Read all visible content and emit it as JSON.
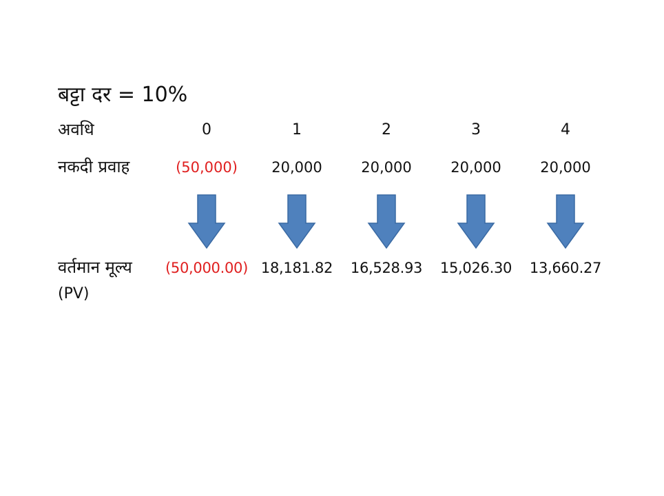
{
  "slide": {
    "title": "बट्टा दर = 10%",
    "labels": {
      "period": "अवधि",
      "cash_flow": "नकदी प्रवाह",
      "present_value": "वर्तमान मूल्य",
      "present_value_abbr": "(PV)"
    },
    "periods": [
      "0",
      "1",
      "2",
      "3",
      "4"
    ],
    "cash_flows": [
      "(50,000)",
      "20,000",
      "20,000",
      "20,000",
      "20,000"
    ],
    "present_values": [
      "(50,000.00)",
      "18,181.82",
      "16,528.93",
      "15,026.30",
      "13,660.27"
    ],
    "colors": {
      "negative": "#e02020",
      "arrow_fill": "#4f81bd",
      "arrow_stroke": "#3a6aa3",
      "text": "#111111"
    },
    "icons": {
      "arrow": "down-arrow-icon"
    }
  }
}
